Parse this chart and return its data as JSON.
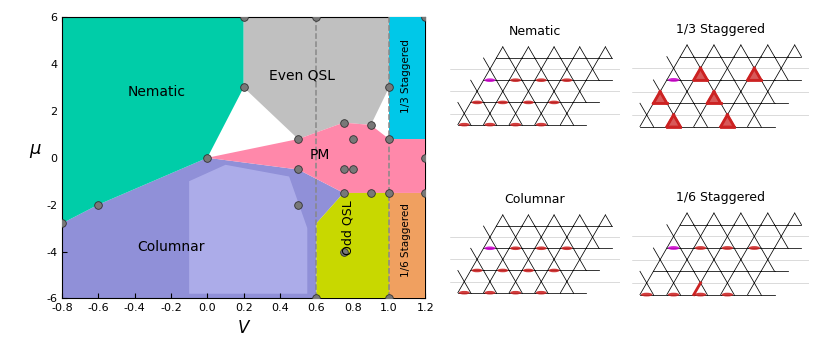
{
  "xlim": [
    -0.8,
    1.2
  ],
  "ylim": [
    -6,
    6
  ],
  "xlabel": "V",
  "ylabel": "μ",
  "xticks": [
    -0.8,
    -0.6,
    -0.4,
    -0.2,
    0.0,
    0.2,
    0.4,
    0.6,
    0.8,
    1.0,
    1.2
  ],
  "yticks": [
    -6,
    -4,
    -2,
    0,
    2,
    4,
    6
  ],
  "nematic_color": "#00CDA8",
  "even_qsl_color": "#C0C0C0",
  "pm_color": "#FF88AA",
  "columnar_color": "#9090D8",
  "columnar_light_color": "#C0C0F0",
  "odd_qsl_color": "#C8D800",
  "stag13_color": "#00C8E8",
  "stag16_color": "#F0A060",
  "dashed_lines": [
    0.6,
    1.0
  ],
  "data_points": [
    [
      -0.8,
      -2.8
    ],
    [
      -0.6,
      -2.0
    ],
    [
      0.0,
      0.0
    ],
    [
      0.2,
      3.0
    ],
    [
      0.2,
      6.0
    ],
    [
      0.5,
      0.8
    ],
    [
      0.5,
      -0.5
    ],
    [
      0.5,
      -2.0
    ],
    [
      0.6,
      -6.0
    ],
    [
      0.6,
      6.0
    ],
    [
      0.75,
      1.5
    ],
    [
      0.75,
      -0.5
    ],
    [
      0.75,
      -1.5
    ],
    [
      0.75,
      -4.0
    ],
    [
      0.8,
      0.8
    ],
    [
      0.8,
      -0.5
    ],
    [
      0.9,
      1.4
    ],
    [
      0.9,
      -1.5
    ],
    [
      1.0,
      3.0
    ],
    [
      1.0,
      -6.0
    ],
    [
      1.0,
      0.8
    ],
    [
      1.0,
      -1.5
    ],
    [
      1.2,
      6.0
    ],
    [
      1.2,
      0.0
    ],
    [
      1.2,
      -1.5
    ]
  ]
}
